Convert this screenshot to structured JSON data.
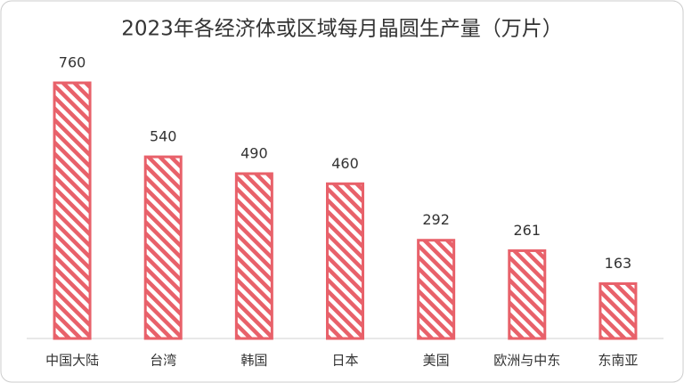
{
  "chart_data": {
    "type": "bar",
    "title": "2023年各经济体或区域每月晶圆生产量（万片）",
    "categories": [
      "中国大陆",
      "台湾",
      "韩国",
      "日本",
      "美国",
      "欧洲与中东",
      "东南亚"
    ],
    "values": [
      760,
      540,
      490,
      460,
      292,
      261,
      163
    ],
    "color": "#e8616a"
  }
}
